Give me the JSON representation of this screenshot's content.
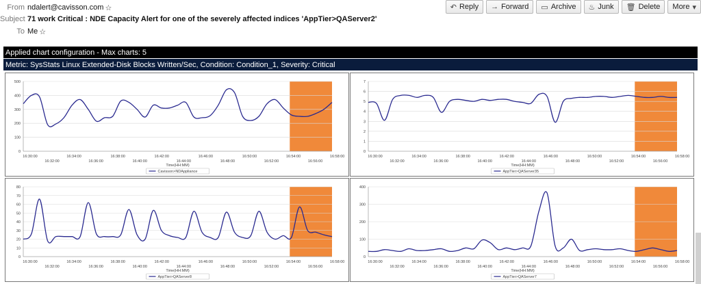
{
  "email": {
    "from_label": "From",
    "from_value": "ndalert@cavisson.com",
    "subject_label": "Subject",
    "subject_value": "71 work Critical : NDE Capacity Alert for one of the severely affected indices 'AppTier>QAServer2'",
    "to_label": "To",
    "to_value": "Me"
  },
  "toolbar": {
    "reply": "Reply",
    "forward": "Forward",
    "archive": "Archive",
    "junk": "Junk",
    "delete": "Delete",
    "more": "More"
  },
  "banner": {
    "config": "Applied chart configuration - Max charts: 5",
    "metric": "Metric: SysStats Linux Extended-Disk Blocks Written/Sec, Condition: Condition_1, Severity: Critical"
  },
  "chart_data": [
    {
      "type": "line",
      "xlabel": "Time(HH:MM)",
      "x_ticks_top": [
        "16:30:00",
        "16:34:00",
        "16:38:00",
        "16:42:00",
        "16:46:00",
        "16:50:00",
        "16:54:00",
        "16:58:00"
      ],
      "x_ticks_bottom": [
        "16:32:00",
        "16:36:00",
        "16:40:00",
        "16:44:00",
        "16:48:00",
        "16:52:00",
        "16:56:00"
      ],
      "ylim": [
        0,
        500
      ],
      "y_ticks": [
        0,
        100,
        200,
        300,
        400,
        500
      ],
      "highlight_x": [
        16.4,
        19.0
      ],
      "legend": "Cavisson>NDAppliance",
      "series": [
        {
          "name": "Cavisson>NDAppliance",
          "x": [
            0,
            0.5,
            1,
            1.5,
            2,
            2.5,
            3,
            3.5,
            4,
            4.5,
            5,
            5.5,
            6,
            6.5,
            7,
            7.5,
            8,
            8.5,
            9,
            9.5,
            10,
            10.5,
            11,
            11.5,
            12,
            12.5,
            13,
            13.5,
            14,
            14.5,
            15,
            15.5,
            16,
            16.5,
            17,
            17.5,
            18,
            18.5,
            19
          ],
          "values": [
            340,
            400,
            390,
            190,
            195,
            240,
            330,
            370,
            300,
            215,
            240,
            250,
            360,
            350,
            300,
            245,
            330,
            310,
            310,
            330,
            350,
            245,
            240,
            255,
            330,
            440,
            420,
            250,
            220,
            250,
            340,
            370,
            310,
            260,
            250,
            250,
            270,
            300,
            350
          ]
        }
      ]
    },
    {
      "type": "line",
      "xlabel": "Time(HH:MM)",
      "x_ticks_top": [
        "16:30:00",
        "16:34:00",
        "16:38:00",
        "16:42:00",
        "16:46:00",
        "16:50:00",
        "16:54:00",
        "16:58:00"
      ],
      "x_ticks_bottom": [
        "16:32:00",
        "16:36:00",
        "16:40:00",
        "16:44:00",
        "16:48:00",
        "16:52:00",
        "16:56:00"
      ],
      "ylim": [
        0,
        7
      ],
      "y_ticks": [
        0,
        1,
        2,
        3,
        4,
        5,
        6,
        7
      ],
      "highlight_x": [
        16.4,
        19.0
      ],
      "legend": "AppTier>QAServer35",
      "series": [
        {
          "name": "AppTier>QAServer35",
          "x": [
            0,
            0.5,
            1,
            1.5,
            2,
            2.5,
            3,
            3.5,
            4,
            4.5,
            5,
            5.5,
            6,
            6.5,
            7,
            7.5,
            8,
            8.5,
            9,
            9.5,
            10,
            10.5,
            11,
            11.5,
            12,
            12.5,
            13,
            13.5,
            14,
            14.5,
            15,
            15.5,
            16,
            16.5,
            17,
            17.5,
            18,
            18.5,
            19
          ],
          "values": [
            4.9,
            4.8,
            3.1,
            5.2,
            5.6,
            5.6,
            5.4,
            5.6,
            5.4,
            3.9,
            5.0,
            5.2,
            5.1,
            5.0,
            5.2,
            5.1,
            5.2,
            5.2,
            5.0,
            4.9,
            4.8,
            5.7,
            5.5,
            2.9,
            5.0,
            5.3,
            5.4,
            5.4,
            5.5,
            5.5,
            5.4,
            5.5,
            5.6,
            5.5,
            5.4,
            5.4,
            5.5,
            5.4,
            5.4
          ]
        }
      ]
    },
    {
      "type": "line",
      "xlabel": "Time(HH:MM)",
      "x_ticks_top": [
        "16:30:00",
        "16:34:00",
        "16:38:00",
        "16:42:00",
        "16:46:00",
        "16:50:00",
        "16:54:00",
        "16:58:00"
      ],
      "x_ticks_bottom": [
        "16:32:00",
        "16:36:00",
        "16:40:00",
        "16:44:00",
        "16:48:00",
        "16:52:00",
        "16:56:00"
      ],
      "ylim": [
        0,
        80
      ],
      "y_ticks": [
        0,
        10,
        20,
        30,
        40,
        50,
        60,
        70,
        80
      ],
      "highlight_x": [
        16.4,
        19.0
      ],
      "legend": "AppTier>QAServer8",
      "series": [
        {
          "name": "AppTier>QAServer8",
          "x": [
            0,
            0.5,
            1,
            1.5,
            2,
            2.5,
            3,
            3.5,
            4,
            4.5,
            5,
            5.5,
            6,
            6.5,
            7,
            7.5,
            8,
            8.5,
            9,
            9.5,
            10,
            10.5,
            11,
            11.5,
            12,
            12.5,
            13,
            13.5,
            14,
            14.5,
            15,
            15.5,
            16,
            16.5,
            17,
            17.5,
            18,
            18.5,
            19
          ],
          "values": [
            20,
            26,
            66,
            18,
            23,
            23,
            23,
            23,
            62,
            26,
            23,
            23,
            25,
            54,
            25,
            20,
            53,
            30,
            24,
            22,
            22,
            52,
            28,
            22,
            22,
            51,
            28,
            22,
            24,
            52,
            28,
            20,
            24,
            22,
            57,
            30,
            28,
            25,
            23
          ]
        }
      ]
    },
    {
      "type": "line",
      "xlabel": "Time(HH:MM)",
      "x_ticks_top": [
        "16:30:00",
        "16:34:00",
        "16:38:00",
        "16:42:00",
        "16:46:00",
        "16:50:00",
        "16:54:00",
        "16:58:00"
      ],
      "x_ticks_bottom": [
        "16:32:00",
        "16:36:00",
        "16:40:00",
        "16:44:00",
        "16:48:00",
        "16:52:00",
        "16:56:00"
      ],
      "ylim": [
        0,
        400
      ],
      "y_ticks": [
        0,
        100,
        200,
        300,
        400
      ],
      "highlight_x": [
        16.4,
        19.0
      ],
      "legend": "AppTier>QAServer7",
      "series": [
        {
          "name": "AppTier>QAServer7",
          "x": [
            0,
            0.5,
            1,
            1.5,
            2,
            2.5,
            3,
            3.5,
            4,
            4.5,
            5,
            5.5,
            6,
            6.5,
            7,
            7.5,
            8,
            8.5,
            9,
            9.5,
            10,
            10.5,
            11,
            11.5,
            12,
            12.5,
            13,
            13.5,
            14,
            14.5,
            15,
            15.5,
            16,
            16.5,
            17,
            17.5,
            18,
            18.5,
            19
          ],
          "values": [
            30,
            30,
            40,
            35,
            30,
            45,
            35,
            35,
            40,
            45,
            30,
            35,
            50,
            45,
            95,
            80,
            40,
            50,
            40,
            50,
            60,
            260,
            365,
            60,
            50,
            100,
            35,
            40,
            45,
            40,
            40,
            45,
            35,
            30,
            40,
            50,
            40,
            30,
            35
          ]
        }
      ]
    }
  ],
  "colors": {
    "line": "#29298f",
    "highlight": "#f0893a",
    "banner_dark": "#000000",
    "banner_navy": "#0a1c3c"
  }
}
